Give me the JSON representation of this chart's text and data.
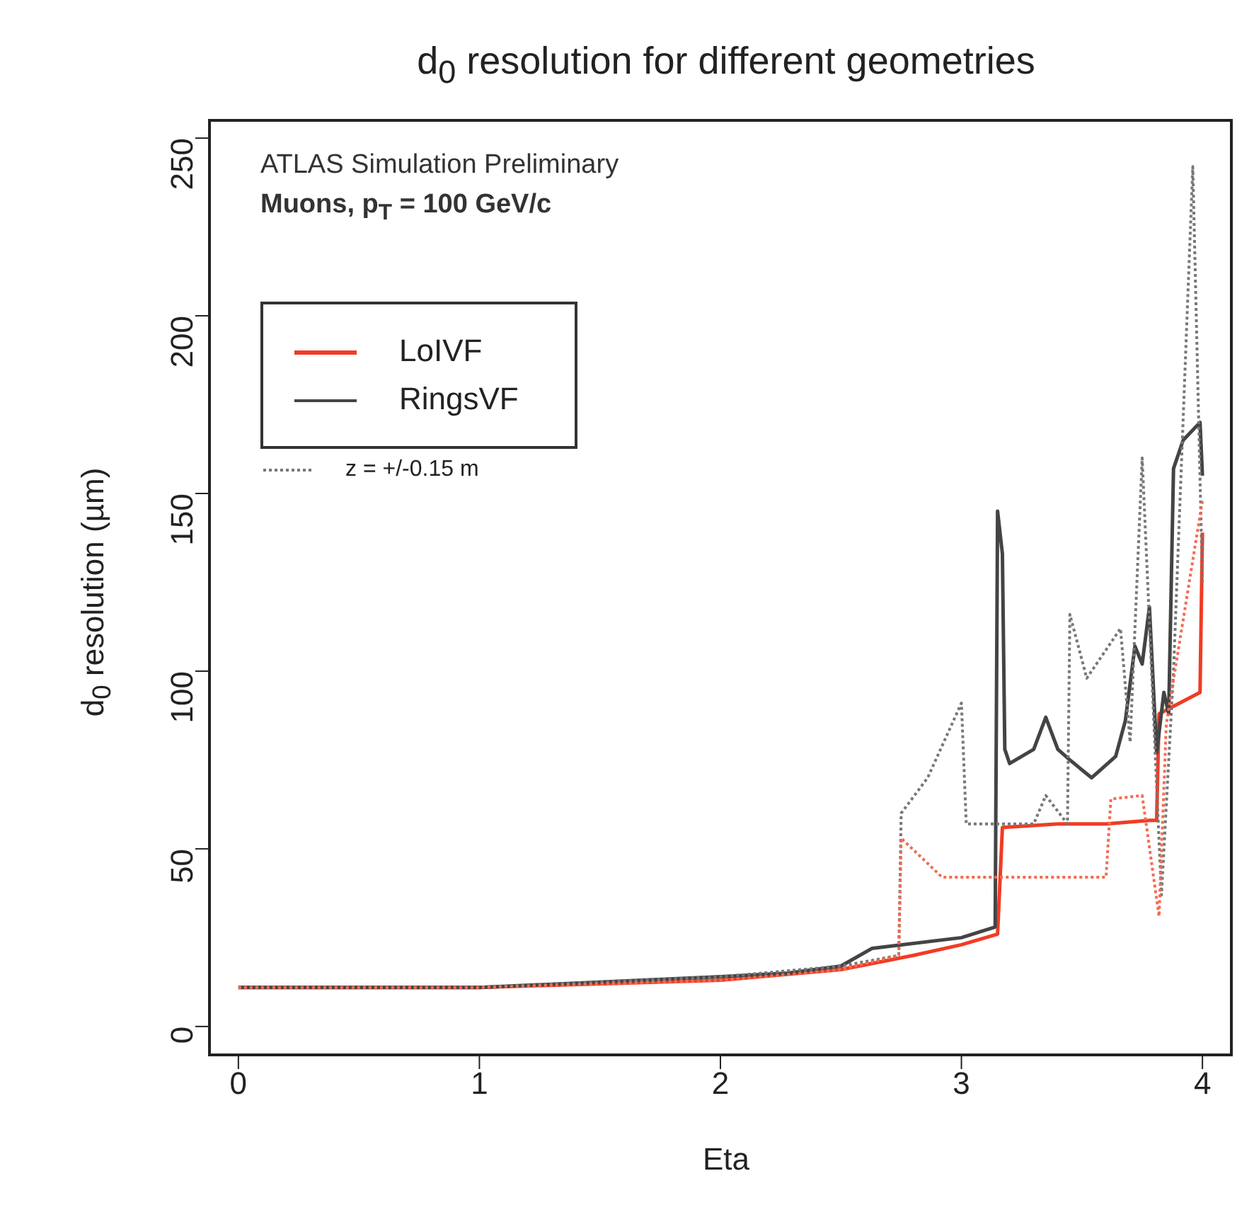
{
  "chart_data": {
    "type": "line",
    "title": "d$_{0}$ resolution for different geometries",
    "xlabel": "Eta",
    "ylabel": "d$_{0}$ resolution (µm)",
    "annotations": [
      "ATLAS Simulation Preliminary",
      "Muons, p$_{T}$ = 100 GeV/c"
    ],
    "xlim": [
      -0.12,
      4.12
    ],
    "xticks": [
      0,
      1,
      2,
      3,
      4
    ],
    "ylim": [
      -8,
      255
    ],
    "yticks": [
      0,
      50,
      100,
      150,
      200,
      250
    ],
    "grid": false,
    "legend": "top left",
    "series": [
      {
        "name": "LoIVF",
        "color": "#f03c24",
        "line_style": "solid",
        "x": [
          0,
          1,
          2,
          2.5,
          2.8,
          3.0,
          3.15,
          3.17,
          3.4,
          3.6,
          3.78,
          3.81,
          3.82,
          3.99,
          4.0
        ],
        "values": [
          11,
          11,
          13,
          16,
          20,
          23,
          26,
          56,
          57,
          57,
          58,
          58,
          88,
          94,
          139
        ]
      },
      {
        "name": "RingsVF",
        "color": "#444444",
        "line_style": "solid",
        "x": [
          0,
          1,
          2,
          2.28,
          2.5,
          2.63,
          3.0,
          3.14,
          3.15,
          3.17,
          3.18,
          3.2,
          3.3,
          3.35,
          3.4,
          3.45,
          3.54,
          3.64,
          3.68,
          3.72,
          3.75,
          3.78,
          3.81,
          3.84,
          3.86,
          3.88,
          3.92,
          3.99,
          4.0
        ],
        "values": [
          11,
          11,
          14,
          15,
          17,
          22,
          25,
          28,
          145,
          133,
          78,
          74,
          78,
          87,
          78,
          75,
          70,
          76,
          86,
          107,
          102,
          118,
          77,
          94,
          88,
          157,
          165,
          170,
          155
        ]
      },
      {
        "name": "z = +/-0.15 m",
        "color": "#777777",
        "line_style": "dotted",
        "x": [
          0,
          1,
          2,
          2.5,
          2.74,
          2.75,
          2.86,
          3.0,
          3.02,
          3.3,
          3.35,
          3.44,
          3.45,
          3.52,
          3.66,
          3.7,
          3.75,
          3.83,
          3.88,
          3.96,
          4.0
        ],
        "values": [
          11,
          11,
          14,
          17,
          20,
          60,
          70,
          91,
          57,
          57,
          65,
          57,
          116,
          98,
          112,
          80,
          160,
          37,
          100,
          242,
          125
        ]
      },
      {
        "color": "#f36b52",
        "line_style": "dotted",
        "x": [
          0,
          1,
          2,
          2.5,
          2.74,
          2.75,
          2.92,
          3.6,
          3.62,
          3.75,
          3.82,
          3.85,
          4.0
        ],
        "values": [
          11,
          11,
          13,
          16,
          20,
          53,
          42,
          42,
          64,
          65,
          31,
          85,
          148
        ]
      }
    ]
  }
}
